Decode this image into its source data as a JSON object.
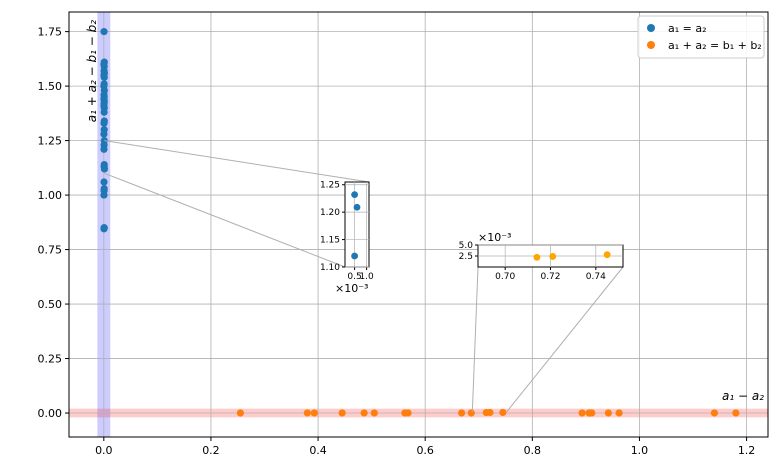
{
  "colors": {
    "series1": "#1f77b4",
    "series2": "#ff7f0e",
    "inset_series2": "#ffa500",
    "band_vertical": "#0000ff",
    "band_horizontal": "#ff0000",
    "grid": "#b0b0b0",
    "connector": "#b0b0b0"
  },
  "chart_data": {
    "type": "scatter",
    "xlabel": "a₁ − a₂",
    "ylabel": "a₁ + a₂ − b₁ − b₂",
    "xlim": [
      -0.065,
      1.24
    ],
    "ylim": [
      -0.11,
      1.84
    ],
    "x_ticks": [
      0.0,
      0.2,
      0.4,
      0.6,
      0.8,
      1.0,
      1.2
    ],
    "x_tick_labels": [
      "0.0",
      "0.2",
      "0.4",
      "0.6",
      "0.8",
      "1.0",
      "1.2"
    ],
    "y_ticks": [
      0.0,
      0.25,
      0.5,
      0.75,
      1.0,
      1.25,
      1.5,
      1.75
    ],
    "y_tick_labels": [
      "0.00",
      "0.25",
      "0.50",
      "0.75",
      "1.00",
      "1.25",
      "1.50",
      "1.75"
    ],
    "grid": true,
    "legend_position": "top-right",
    "series": [
      {
        "name": "a₁ = a₂",
        "x": [
          0.0004,
          0.0009,
          0.0002,
          0.0007,
          0.0005,
          0.0011,
          0.0003,
          0.0008,
          0.0006,
          0.0001,
          0.001,
          0.0004,
          0.0007,
          0.0002,
          0.0009,
          0.0005,
          0.0003,
          0.0008,
          0.0006,
          0.001,
          0.0004,
          0.0007,
          0.0002,
          0.0009,
          0.0005,
          0.0003,
          0.0008,
          0.0006,
          0.0012,
          0.0004,
          0.0007,
          0.0005,
          0.0003,
          0.0006,
          0.0004,
          0.0008
        ],
        "y": [
          1.75,
          1.61,
          1.6,
          1.59,
          1.57,
          1.56,
          1.55,
          1.54,
          1.51,
          1.5,
          1.48,
          1.46,
          1.45,
          1.44,
          1.43,
          1.42,
          1.41,
          1.4,
          1.38,
          1.34,
          1.33,
          1.3,
          1.28,
          1.25,
          1.23,
          1.21,
          1.14,
          1.13,
          1.12,
          1.06,
          1.03,
          1.02,
          1.0,
          0.85,
          0.845,
          0.85
        ]
      },
      {
        "name": "a₁ + a₂ = b₁ + b₂",
        "x": [
          0.255,
          0.38,
          0.393,
          0.445,
          0.486,
          0.505,
          0.562,
          0.568,
          0.668,
          0.686,
          0.714,
          0.721,
          0.745,
          0.893,
          0.906,
          0.911,
          0.942,
          0.962,
          1.14,
          1.18
        ],
        "y": [
          0.0002,
          0.0003,
          0.0002,
          0.0002,
          0.0003,
          0.0002,
          0.0002,
          0.0003,
          0.0002,
          0.0002,
          0.0022,
          0.0024,
          0.0028,
          0.0002,
          0.0002,
          0.0003,
          0.0002,
          0.0002,
          0.0002,
          0.0002
        ]
      }
    ],
    "insets": [
      {
        "name": "inset-left",
        "xlim": [
          0.0001,
          0.0011
        ],
        "ylim": [
          1.1,
          1.255
        ],
        "x_ticks": [
          0.0005,
          0.001
        ],
        "x_tick_labels": [
          "0.5",
          "1.0"
        ],
        "x_offset_label": "×10⁻³",
        "y_ticks": [
          1.1,
          1.15,
          1.2,
          1.25
        ],
        "y_tick_labels": [
          "1.10",
          "1.15",
          "1.20",
          "1.25"
        ],
        "zoom_region": {
          "x": [
            0.0,
            0.0012
          ],
          "y": [
            1.1,
            1.25
          ]
        },
        "points": [
          {
            "x": 0.0005,
            "y": 1.232
          },
          {
            "x": 0.0006,
            "y": 1.209
          },
          {
            "x": 0.0005,
            "y": 1.12
          }
        ]
      },
      {
        "name": "inset-right",
        "xlim": [
          0.688,
          0.752
        ],
        "ylim": [
          0.0,
          0.005
        ],
        "x_ticks": [
          0.7,
          0.72,
          0.74
        ],
        "x_tick_labels": [
          "0.70",
          "0.72",
          "0.74"
        ],
        "y_ticks": [
          0.0025,
          0.005
        ],
        "y_tick_labels": [
          "2.5",
          "5.0"
        ],
        "y_offset_label": "×10⁻³",
        "zoom_region": {
          "x": [
            0.688,
            0.752
          ],
          "y": [
            0.0,
            0.005
          ]
        },
        "points": [
          {
            "x": 0.714,
            "y": 0.0022
          },
          {
            "x": 0.721,
            "y": 0.0024
          },
          {
            "x": 0.745,
            "y": 0.0028
          }
        ]
      }
    ]
  }
}
